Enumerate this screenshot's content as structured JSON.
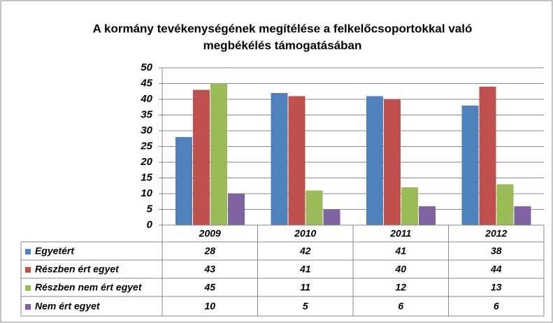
{
  "chart_data": {
    "type": "bar",
    "title": [
      "A kormány tevékenységének megítélése a felkelőcsoportokkal való",
      "megbékélés támogatásában"
    ],
    "categories": [
      "2009",
      "2010",
      "2011",
      "2012"
    ],
    "series": [
      {
        "name": "Egyetért",
        "color": "#4f81bd",
        "values": [
          28,
          42,
          41,
          38
        ]
      },
      {
        "name": "Részben ért egyet",
        "color": "#c0504d",
        "values": [
          43,
          41,
          40,
          44
        ]
      },
      {
        "name": "Részben nem ért egyet",
        "color": "#9bbb59",
        "values": [
          45,
          11,
          12,
          13
        ]
      },
      {
        "name": "Nem ért egyet",
        "color": "#8064a2",
        "values": [
          10,
          5,
          6,
          6
        ]
      }
    ],
    "ylim": [
      0,
      50
    ],
    "yticks": [
      0,
      5,
      10,
      15,
      20,
      25,
      30,
      35,
      40,
      45,
      50
    ],
    "grid": true
  }
}
